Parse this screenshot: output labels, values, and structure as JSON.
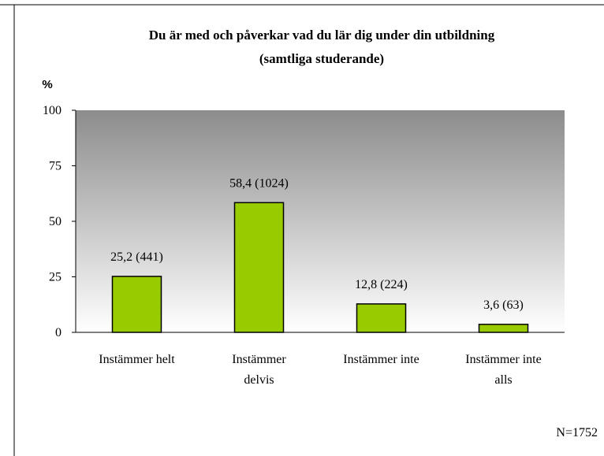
{
  "chart_data": {
    "type": "bar",
    "title": "Du är med och påverkar vad du lär dig under din utbildning",
    "subtitle": "(samtliga studerande)",
    "y_label": "%",
    "categories": [
      "Instämmer helt",
      "Instämmer delvis",
      "Instämmer inte",
      "Instämmer inte alls"
    ],
    "values": [
      25.2,
      58.4,
      12.8,
      3.6
    ],
    "value_labels": [
      "25,2 (441)",
      "58,4 (1024)",
      "12,8 (224)",
      "3,6 (63)"
    ],
    "color": "#99cc00",
    "ylim": [
      0,
      100
    ],
    "yticks": [
      0,
      25,
      50,
      75,
      100
    ],
    "grid": false,
    "annotation": "N=1752"
  }
}
